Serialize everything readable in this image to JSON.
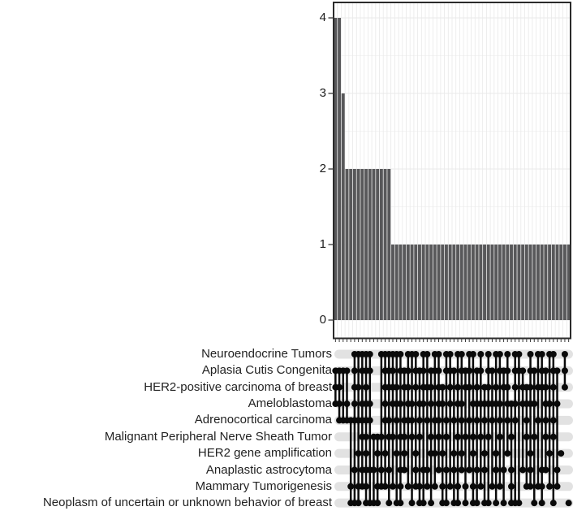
{
  "chart_data": {
    "type": "bar",
    "subtype": "upset-intersection-plot",
    "title": "",
    "xlabel": "",
    "ylabel": "",
    "bar_panel": {
      "yticks": [
        "0",
        "1",
        "2",
        "3",
        "4"
      ],
      "ylim": [
        0,
        4
      ],
      "grid": "on",
      "n_columns": 62,
      "bar_values": [
        4,
        4,
        3,
        2,
        2,
        2,
        2,
        2,
        2,
        2,
        2,
        2,
        2,
        2,
        2,
        1,
        1,
        1,
        1,
        1,
        1,
        1,
        1,
        1,
        1,
        1,
        1,
        1,
        1,
        1,
        1,
        1,
        1,
        1,
        1,
        1,
        1,
        1,
        1,
        1,
        1,
        1,
        1,
        1,
        1,
        1,
        1,
        1,
        1,
        1,
        1,
        1,
        1,
        1,
        1,
        1,
        1,
        1,
        1,
        1,
        1,
        1
      ]
    },
    "sets": [
      "Neuroendocrine Tumors",
      "Aplasia Cutis Congenita",
      "HER2-positive carcinoma of breast",
      "Ameloblastoma",
      "Adrenocortical carcinoma",
      "Malignant Peripheral Nerve Sheath Tumor",
      "HER2 gene amplification",
      "Anaplastic astrocytoma",
      "Mammary Tumorigenesis",
      "Neoplasm of uncertain or unknown behavior of breast"
    ],
    "combinations": [
      {
        "count": 4,
        "members": [
          2,
          3,
          4
        ]
      },
      {
        "count": 4,
        "members": [
          2,
          3,
          4,
          5
        ]
      },
      {
        "count": 3,
        "members": [
          2,
          5
        ]
      },
      {
        "count": 2,
        "members": [
          2,
          4,
          5
        ]
      },
      {
        "count": 2,
        "members": [
          5,
          9,
          10
        ]
      },
      {
        "count": 2,
        "members": [
          1,
          2,
          3,
          4,
          5,
          8,
          10
        ]
      },
      {
        "count": 2,
        "members": [
          1,
          3,
          5,
          7,
          9,
          10
        ]
      },
      {
        "count": 2,
        "members": [
          1,
          2,
          4,
          5,
          6,
          8,
          9
        ]
      },
      {
        "count": 2,
        "members": [
          1,
          2,
          3,
          4,
          5,
          6,
          7,
          8,
          9,
          10
        ]
      },
      {
        "count": 2,
        "members": [
          1,
          2,
          4,
          5,
          8,
          10
        ]
      },
      {
        "count": 2,
        "members": [
          6,
          8,
          10
        ]
      },
      {
        "count": 2,
        "members": [
          6,
          7,
          9,
          10
        ]
      },
      {
        "count": 2,
        "members": [
          1,
          6,
          8,
          9
        ]
      },
      {
        "count": 2,
        "members": [
          1,
          2,
          3,
          4,
          5,
          7,
          9
        ]
      },
      {
        "count": 2,
        "members": [
          1,
          2,
          3,
          5,
          6,
          8,
          10
        ]
      },
      {
        "count": 1,
        "members": [
          1,
          2,
          3,
          4,
          6,
          9
        ]
      },
      {
        "count": 1,
        "members": [
          1,
          3,
          4,
          5,
          7,
          10
        ]
      },
      {
        "count": 1,
        "members": [
          1,
          2,
          4,
          6,
          8,
          9,
          10
        ]
      },
      {
        "count": 1,
        "members": [
          2,
          3,
          5,
          6,
          7,
          8
        ]
      },
      {
        "count": 1,
        "members": [
          1,
          2,
          3,
          4,
          5,
          9
        ]
      },
      {
        "count": 1,
        "members": [
          1,
          4,
          5,
          6,
          10
        ]
      },
      {
        "count": 1,
        "members": [
          1,
          2,
          3,
          7,
          8,
          9
        ]
      },
      {
        "count": 1,
        "members": [
          2,
          4,
          5,
          6,
          9,
          10
        ]
      },
      {
        "count": 1,
        "members": [
          1,
          2,
          3,
          4,
          8,
          10
        ]
      },
      {
        "count": 1,
        "members": [
          1,
          3,
          5,
          8,
          9
        ]
      },
      {
        "count": 1,
        "members": [
          2,
          3,
          4,
          6,
          7,
          10
        ]
      },
      {
        "count": 1,
        "members": [
          1,
          2,
          5,
          7,
          9
        ]
      },
      {
        "count": 1,
        "members": [
          1,
          2,
          3,
          4,
          5,
          6,
          8
        ]
      },
      {
        "count": 1,
        "members": [
          3,
          4,
          7,
          9,
          10
        ]
      },
      {
        "count": 1,
        "members": [
          1,
          2,
          5,
          6,
          8,
          10
        ]
      },
      {
        "count": 1,
        "members": [
          1,
          2,
          3,
          4,
          9
        ]
      },
      {
        "count": 1,
        "members": [
          2,
          5,
          7,
          8,
          10
        ]
      },
      {
        "count": 1,
        "members": [
          1,
          3,
          4,
          6,
          9,
          10
        ]
      },
      {
        "count": 1,
        "members": [
          1,
          2,
          4,
          5,
          7,
          8
        ]
      },
      {
        "count": 1,
        "members": [
          2,
          3,
          6,
          9,
          10
        ]
      },
      {
        "count": 1,
        "members": [
          1,
          2,
          3,
          5,
          8
        ]
      },
      {
        "count": 1,
        "members": [
          1,
          4,
          6,
          7,
          9,
          10
        ]
      },
      {
        "count": 1,
        "members": [
          2,
          3,
          4,
          5,
          8,
          10
        ]
      },
      {
        "count": 1,
        "members": [
          1,
          2,
          4,
          6,
          9
        ]
      },
      {
        "count": 1,
        "members": [
          3,
          4,
          5,
          7,
          8,
          10
        ]
      },
      {
        "count": 1,
        "members": [
          1,
          2,
          3,
          4,
          6,
          10
        ]
      },
      {
        "count": 1,
        "members": [
          2,
          4,
          5,
          9
        ]
      },
      {
        "count": 1,
        "members": [
          1,
          3,
          4,
          7,
          8,
          10
        ]
      },
      {
        "count": 1,
        "members": [
          1,
          2,
          4,
          5,
          6,
          9
        ]
      },
      {
        "count": 1,
        "members": [
          2,
          3,
          8,
          10
        ]
      },
      {
        "count": 1,
        "members": [
          1,
          2,
          3,
          4,
          5,
          7
        ]
      },
      {
        "count": 1,
        "members": [
          4,
          6,
          8,
          9,
          10
        ]
      },
      {
        "count": 1,
        "members": [
          1,
          2,
          3,
          4,
          5,
          10
        ]
      },
      {
        "count": 1,
        "members": [
          1,
          2,
          10
        ]
      },
      {
        "count": 1,
        "members": [
          2,
          3,
          4,
          8
        ]
      },
      {
        "count": 1,
        "members": [
          3,
          4,
          5,
          6,
          9
        ]
      },
      {
        "count": 1,
        "members": [
          1,
          2,
          3,
          4,
          7,
          8,
          9
        ]
      },
      {
        "count": 1,
        "members": [
          2,
          4,
          6,
          10
        ]
      },
      {
        "count": 1,
        "members": [
          1,
          3,
          5,
          9
        ]
      },
      {
        "count": 1,
        "members": [
          1,
          2,
          3,
          8,
          9,
          10
        ]
      },
      {
        "count": 1,
        "members": [
          2,
          3,
          4,
          5,
          6,
          8
        ]
      },
      {
        "count": 1,
        "members": [
          1,
          4,
          7,
          9
        ]
      },
      {
        "count": 1,
        "members": [
          1,
          2,
          3,
          5,
          6,
          10
        ]
      },
      {
        "count": 1,
        "members": [
          2,
          4,
          8,
          9
        ]
      },
      {
        "count": 1,
        "members": [
          7
        ]
      },
      {
        "count": 1,
        "members": [
          1,
          2,
          3
        ]
      },
      {
        "count": 1,
        "members": [
          10
        ]
      }
    ],
    "colors": {
      "bar": "#58585a",
      "dot": "#0a0a0a",
      "connector": "#0a0a0a",
      "stripe": "#e2e2e2",
      "grid_major": "#e9e9e9",
      "grid_minor": "#f4f4f4",
      "panel_border": "#2b2b2b",
      "tick": "#3a3a3a",
      "background": "#ffffff"
    },
    "legend": "none"
  }
}
